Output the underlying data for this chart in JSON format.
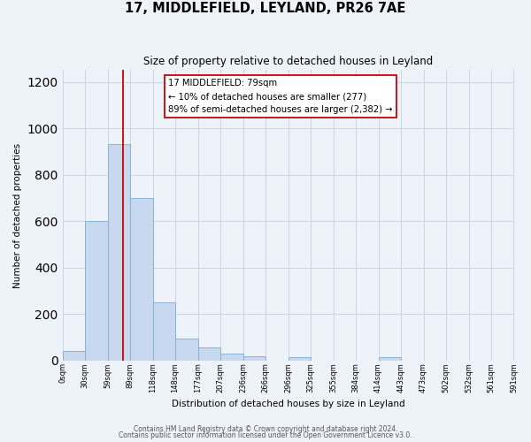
{
  "title": "17, MIDDLEFIELD, LEYLAND, PR26 7AE",
  "subtitle": "Size of property relative to detached houses in Leyland",
  "xlabel": "Distribution of detached houses by size in Leyland",
  "ylabel": "Number of detached properties",
  "bin_width": 29.5,
  "bar_lefts": [
    0,
    29.5,
    59,
    88.5,
    118,
    147.5,
    177,
    206.5,
    236,
    265.5,
    295,
    324.5,
    354,
    383.5,
    413,
    442.5,
    472,
    501.5,
    531,
    560.5
  ],
  "bar_heights": [
    40,
    600,
    930,
    700,
    248,
    95,
    55,
    30,
    18,
    0,
    12,
    0,
    0,
    0,
    12,
    0,
    0,
    0,
    0,
    0
  ],
  "tick_positions": [
    0,
    29.5,
    59,
    88.5,
    118,
    147.5,
    177,
    206.5,
    236,
    265.5,
    295,
    324.5,
    354,
    383.5,
    413,
    442.5,
    472,
    501.5,
    531,
    560.5,
    590
  ],
  "tick_labels": [
    "0sqm",
    "30sqm",
    "59sqm",
    "89sqm",
    "118sqm",
    "148sqm",
    "177sqm",
    "207sqm",
    "236sqm",
    "266sqm",
    "296sqm",
    "325sqm",
    "355sqm",
    "384sqm",
    "414sqm",
    "443sqm",
    "473sqm",
    "502sqm",
    "532sqm",
    "561sqm",
    "591sqm"
  ],
  "bar_color": "#c8d9ef",
  "bar_edge_color": "#7badd4",
  "grid_color": "#ccd5e3",
  "vline_x": 79,
  "vline_color": "#cc0000",
  "annotation_text": "17 MIDDLEFIELD: 79sqm\n← 10% of detached houses are smaller (277)\n89% of semi-detached houses are larger (2,382) →",
  "annotation_box_facecolor": "#ffffff",
  "annotation_box_edgecolor": "#cc0000",
  "xlim": [
    0,
    590
  ],
  "ylim": [
    0,
    1250
  ],
  "yticks": [
    0,
    200,
    400,
    600,
    800,
    1000,
    1200
  ],
  "footer1": "Contains HM Land Registry data © Crown copyright and database right 2024.",
  "footer2": "Contains public sector information licensed under the Open Government Licence v3.0.",
  "bg_color": "#eef2f9"
}
